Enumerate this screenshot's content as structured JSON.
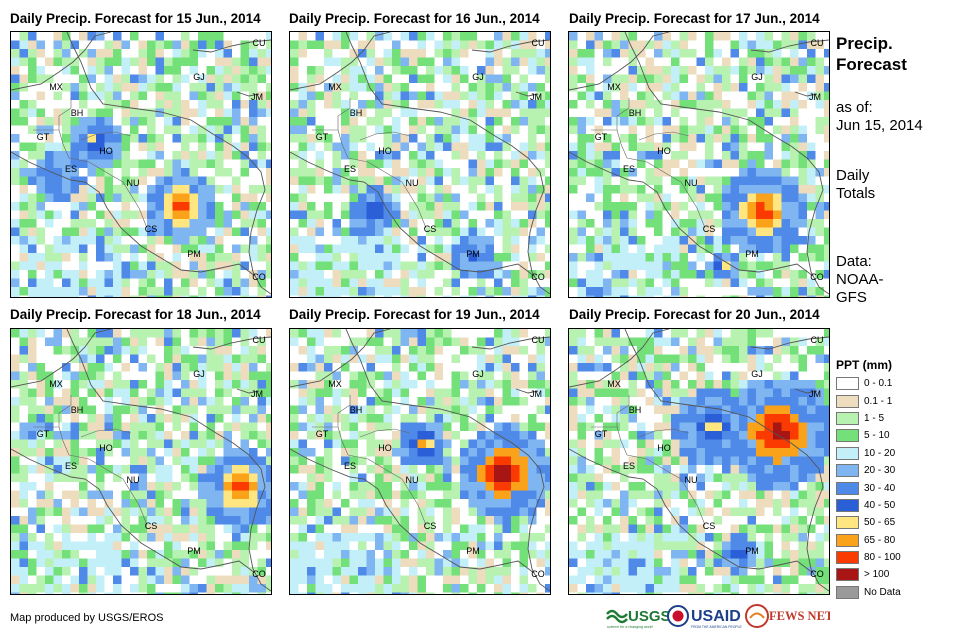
{
  "panels": [
    {
      "title": "Daily Precip. Forecast for 15 Jun., 2014",
      "seed": 15,
      "hot": [
        {
          "cx": 165,
          "cy": 170,
          "r": 18,
          "lv": 10
        },
        {
          "cx": 80,
          "cy": 105,
          "r": 14,
          "lv": 8
        },
        {
          "cx": 40,
          "cy": 140,
          "r": 12,
          "lv": 7
        }
      ]
    },
    {
      "title": "Daily Precip. Forecast for 16 Jun., 2014",
      "seed": 16,
      "hot": [
        {
          "cx": 80,
          "cy": 175,
          "r": 12,
          "lv": 8
        },
        {
          "cx": 180,
          "cy": 220,
          "r": 12,
          "lv": 7
        }
      ]
    },
    {
      "title": "Daily Precip. Forecast for 17 Jun., 2014",
      "seed": 17,
      "hot": [
        {
          "cx": 190,
          "cy": 175,
          "r": 22,
          "lv": 10
        },
        {
          "cx": 150,
          "cy": 230,
          "r": 8,
          "lv": 9
        }
      ]
    },
    {
      "title": "Daily Precip. Forecast for 18 Jun., 2014",
      "seed": 18,
      "hot": [
        {
          "cx": 225,
          "cy": 155,
          "r": 20,
          "lv": 10
        }
      ]
    },
    {
      "title": "Daily Precip. Forecast for 19 Jun., 2014",
      "seed": 19,
      "hot": [
        {
          "cx": 210,
          "cy": 140,
          "r": 24,
          "lv": 11
        },
        {
          "cx": 130,
          "cy": 110,
          "r": 12,
          "lv": 9
        }
      ]
    },
    {
      "title": "Daily Precip. Forecast for 20 Jun., 2014",
      "seed": 20,
      "hot": [
        {
          "cx": 205,
          "cy": 100,
          "r": 28,
          "lv": 11
        },
        {
          "cx": 140,
          "cy": 95,
          "r": 20,
          "lv": 8
        },
        {
          "cx": 165,
          "cy": 220,
          "r": 10,
          "lv": 8
        }
      ]
    }
  ],
  "places": [
    {
      "label": "CU",
      "x": 248,
      "y": 14
    },
    {
      "label": "MX",
      "x": 45,
      "y": 58
    },
    {
      "label": "GJ",
      "x": 188,
      "y": 48
    },
    {
      "label": "JM",
      "x": 246,
      "y": 68
    },
    {
      "label": "BH",
      "x": 66,
      "y": 84
    },
    {
      "label": "GT",
      "x": 32,
      "y": 108
    },
    {
      "label": "HO",
      "x": 95,
      "y": 122
    },
    {
      "label": "ES",
      "x": 60,
      "y": 140
    },
    {
      "label": "NU",
      "x": 122,
      "y": 154
    },
    {
      "label": "CS",
      "x": 140,
      "y": 200
    },
    {
      "label": "PM",
      "x": 183,
      "y": 225
    },
    {
      "label": "CO",
      "x": 248,
      "y": 248
    }
  ],
  "side": {
    "title": "Precip. Forecast",
    "as_of_label": "as of:",
    "as_of_date": "Jun 15, 2014",
    "daily": "Daily",
    "totals": "Totals",
    "data_label": "Data:",
    "noaa": "NOAA-",
    "gfs": "GFS"
  },
  "legend": {
    "title": "PPT (mm)",
    "items": [
      {
        "label": "0 - 0.1",
        "color": "#ffffff"
      },
      {
        "label": "0.1 - 1",
        "color": "#eddcbe"
      },
      {
        "label": "1 - 5",
        "color": "#b8f2b0"
      },
      {
        "label": "5 - 10",
        "color": "#74e07a"
      },
      {
        "label": "10 - 20",
        "color": "#c3f0f8"
      },
      {
        "label": "20 - 30",
        "color": "#7fb6f2"
      },
      {
        "label": "30 - 40",
        "color": "#4f8ae8"
      },
      {
        "label": "40 - 50",
        "color": "#2a5fd7"
      },
      {
        "label": "50 - 65",
        "color": "#ffe680"
      },
      {
        "label": "65 - 80",
        "color": "#f9a21a"
      },
      {
        "label": "80 - 100",
        "color": "#fa3a00"
      },
      {
        "label": "> 100",
        "color": "#a81515"
      },
      {
        "label": "No Data",
        "color": "#9a9a9a"
      }
    ]
  },
  "credit": "Map produced by USGS/EROS",
  "logos": {
    "usgs": "USGS",
    "usgs_tag": "science for a changing world",
    "usaid": "USAID",
    "usaid_tag": "FROM THE AMERICAN PEOPLE",
    "fews": "FEWS NET"
  }
}
